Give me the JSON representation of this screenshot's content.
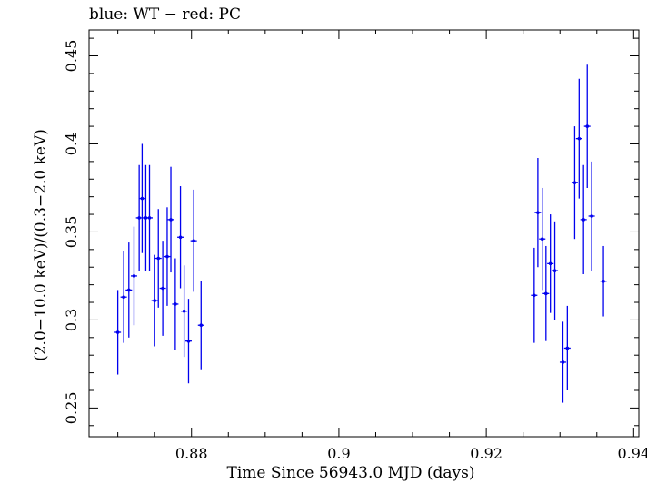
{
  "chart_data": {
    "type": "scatter",
    "title": "blue: WT − red: PC",
    "xlabel": "Time Since 56943.0 MJD (days)",
    "ylabel": "(2.0−10.0 keV)/(0.3−2.0 keV)",
    "xlim": [
      0.8661,
      0.9407
    ],
    "ylim": [
      0.2337,
      0.4647
    ],
    "xticks": [
      0.88,
      0.9,
      0.92,
      0.94
    ],
    "xtick_labels": [
      "0.88",
      "0.9",
      "0.92",
      "0.94"
    ],
    "yticks": [
      0.25,
      0.3,
      0.35,
      0.4,
      0.45
    ],
    "ytick_labels": [
      "0.25",
      "0.3",
      "0.35",
      "0.4",
      "0.45"
    ],
    "series": [
      {
        "name": "WT",
        "color": "#0000ee",
        "points": [
          {
            "x": 0.87,
            "y": 0.293,
            "yerr": 0.024
          },
          {
            "x": 0.8708,
            "y": 0.313,
            "yerr": 0.026
          },
          {
            "x": 0.8715,
            "y": 0.317,
            "yerr": 0.027
          },
          {
            "x": 0.8722,
            "y": 0.325,
            "yerr": 0.028
          },
          {
            "x": 0.8729,
            "y": 0.358,
            "yerr": 0.03
          },
          {
            "x": 0.8733,
            "y": 0.369,
            "yerr": 0.031
          },
          {
            "x": 0.8738,
            "y": 0.358,
            "yerr": 0.03
          },
          {
            "x": 0.8743,
            "y": 0.358,
            "yerr": 0.03
          },
          {
            "x": 0.875,
            "y": 0.311,
            "yerr": 0.026
          },
          {
            "x": 0.8755,
            "y": 0.335,
            "yerr": 0.028
          },
          {
            "x": 0.8761,
            "y": 0.318,
            "yerr": 0.027
          },
          {
            "x": 0.8767,
            "y": 0.336,
            "yerr": 0.028
          },
          {
            "x": 0.8772,
            "y": 0.357,
            "yerr": 0.03
          },
          {
            "x": 0.8778,
            "y": 0.309,
            "yerr": 0.026
          },
          {
            "x": 0.8785,
            "y": 0.347,
            "yerr": 0.029
          },
          {
            "x": 0.879,
            "y": 0.305,
            "yerr": 0.026
          },
          {
            "x": 0.8796,
            "y": 0.288,
            "yerr": 0.024
          },
          {
            "x": 0.8803,
            "y": 0.345,
            "yerr": 0.029
          },
          {
            "x": 0.8813,
            "y": 0.297,
            "yerr": 0.025
          },
          {
            "x": 0.9265,
            "y": 0.314,
            "yerr": 0.027
          },
          {
            "x": 0.927,
            "y": 0.361,
            "yerr": 0.031
          },
          {
            "x": 0.9276,
            "y": 0.346,
            "yerr": 0.029
          },
          {
            "x": 0.9281,
            "y": 0.315,
            "yerr": 0.027
          },
          {
            "x": 0.9287,
            "y": 0.332,
            "yerr": 0.028
          },
          {
            "x": 0.9293,
            "y": 0.328,
            "yerr": 0.028
          },
          {
            "x": 0.9304,
            "y": 0.276,
            "yerr": 0.023
          },
          {
            "x": 0.931,
            "y": 0.284,
            "yerr": 0.024
          },
          {
            "x": 0.932,
            "y": 0.378,
            "yerr": 0.032
          },
          {
            "x": 0.9326,
            "y": 0.403,
            "yerr": 0.034
          },
          {
            "x": 0.9332,
            "y": 0.357,
            "yerr": 0.031
          },
          {
            "x": 0.9337,
            "y": 0.41,
            "yerr": 0.035
          },
          {
            "x": 0.9343,
            "y": 0.359,
            "yerr": 0.031
          },
          {
            "x": 0.9359,
            "y": 0.322,
            "yerr": 0.02
          }
        ]
      }
    ]
  }
}
